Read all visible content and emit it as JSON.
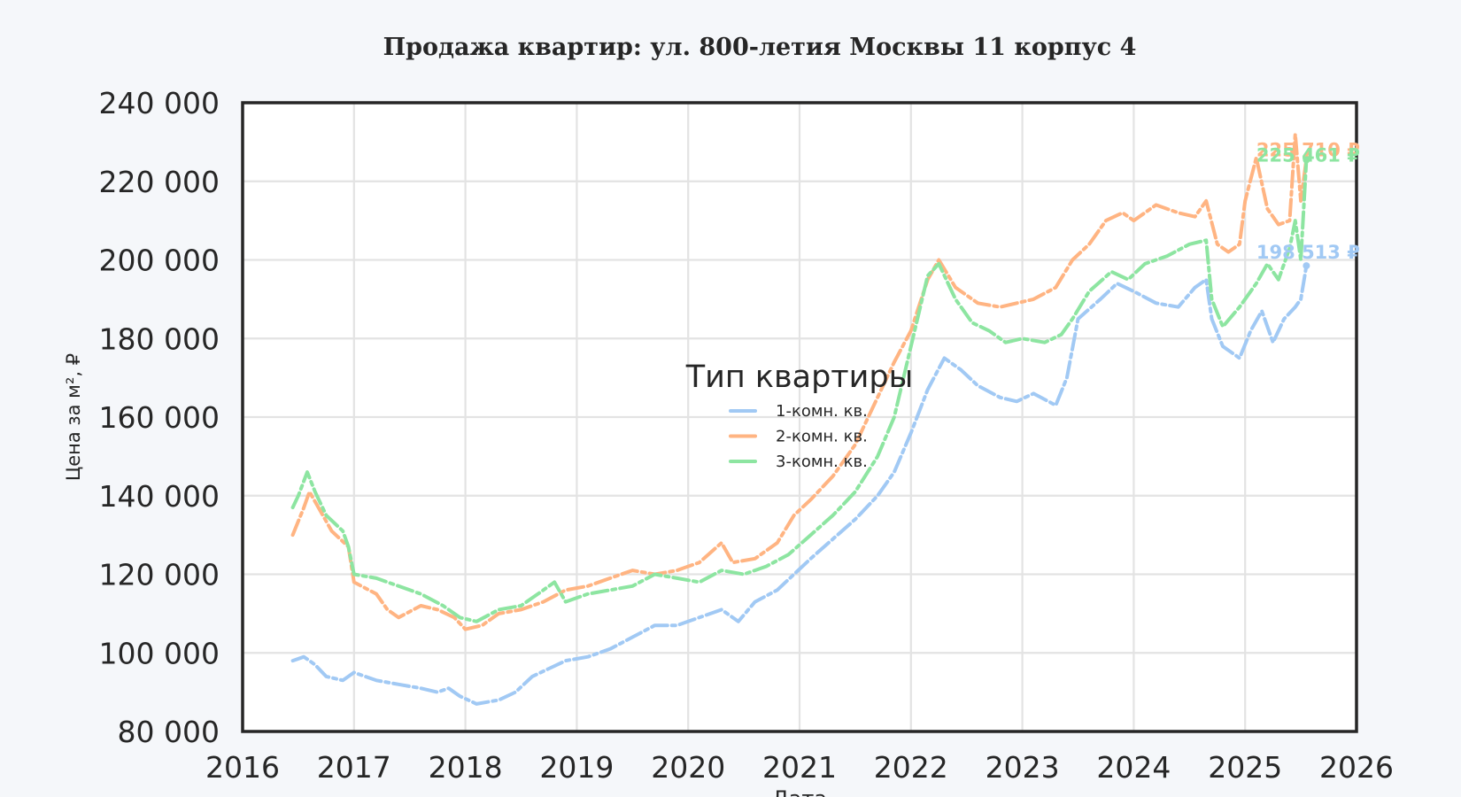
{
  "chart_data": {
    "type": "line",
    "title": "Продажа квартир: ул. 800-летия Москвы 11 корпус 4",
    "xlabel": "Дата",
    "ylabel": "Цена за м², ₽",
    "xlim": [
      2016,
      2026
    ],
    "ylim": [
      80000,
      240000
    ],
    "x_ticks": [
      "2016",
      "2017",
      "2018",
      "2019",
      "2020",
      "2021",
      "2022",
      "2023",
      "2024",
      "2025",
      "2026"
    ],
    "y_ticks": [
      "80 000",
      "100 000",
      "120 000",
      "140 000",
      "160 000",
      "180 000",
      "200 000",
      "220 000",
      "240 000"
    ],
    "grid": true,
    "legend": {
      "title": "Тип квартиры",
      "placement": "center"
    },
    "series": [
      {
        "name": "1-комн. кв.",
        "color": "#a1c9f4",
        "end_label": "198 513 ₽",
        "points": [
          [
            2016.45,
            98000
          ],
          [
            2016.55,
            99000
          ],
          [
            2016.65,
            97000
          ],
          [
            2016.75,
            94000
          ],
          [
            2016.9,
            93000
          ],
          [
            2017.0,
            95000
          ],
          [
            2017.2,
            93000
          ],
          [
            2017.4,
            92000
          ],
          [
            2017.6,
            91000
          ],
          [
            2017.75,
            90000
          ],
          [
            2017.85,
            91000
          ],
          [
            2017.95,
            89000
          ],
          [
            2018.1,
            87000
          ],
          [
            2018.3,
            88000
          ],
          [
            2018.45,
            90000
          ],
          [
            2018.6,
            94000
          ],
          [
            2018.75,
            96000
          ],
          [
            2018.9,
            98000
          ],
          [
            2019.1,
            99000
          ],
          [
            2019.3,
            101000
          ],
          [
            2019.5,
            104000
          ],
          [
            2019.7,
            107000
          ],
          [
            2019.9,
            107000
          ],
          [
            2020.1,
            109000
          ],
          [
            2020.3,
            111000
          ],
          [
            2020.45,
            108000
          ],
          [
            2020.6,
            113000
          ],
          [
            2020.8,
            116000
          ],
          [
            2020.95,
            120000
          ],
          [
            2021.1,
            124000
          ],
          [
            2021.3,
            129000
          ],
          [
            2021.5,
            134000
          ],
          [
            2021.7,
            140000
          ],
          [
            2021.85,
            146000
          ],
          [
            2022.0,
            156000
          ],
          [
            2022.15,
            167000
          ],
          [
            2022.3,
            175000
          ],
          [
            2022.45,
            172000
          ],
          [
            2022.6,
            168000
          ],
          [
            2022.8,
            165000
          ],
          [
            2022.95,
            164000
          ],
          [
            2023.1,
            166000
          ],
          [
            2023.3,
            163000
          ],
          [
            2023.4,
            170000
          ],
          [
            2023.5,
            185000
          ],
          [
            2023.7,
            190000
          ],
          [
            2023.85,
            194000
          ],
          [
            2024.0,
            192000
          ],
          [
            2024.2,
            189000
          ],
          [
            2024.4,
            188000
          ],
          [
            2024.55,
            193000
          ],
          [
            2024.65,
            195000
          ],
          [
            2024.7,
            185000
          ],
          [
            2024.8,
            178000
          ],
          [
            2024.95,
            175000
          ],
          [
            2025.05,
            182000
          ],
          [
            2025.15,
            187000
          ],
          [
            2025.25,
            179000
          ],
          [
            2025.35,
            185000
          ],
          [
            2025.45,
            188000
          ],
          [
            2025.5,
            190000
          ],
          [
            2025.55,
            198513
          ]
        ]
      },
      {
        "name": "2-комн. кв.",
        "color": "#ffb482",
        "end_label": "225 710 ₽",
        "points": [
          [
            2016.45,
            130000
          ],
          [
            2016.55,
            137000
          ],
          [
            2016.6,
            141000
          ],
          [
            2016.7,
            136000
          ],
          [
            2016.8,
            131000
          ],
          [
            2016.95,
            127000
          ],
          [
            2017.0,
            118000
          ],
          [
            2017.2,
            115000
          ],
          [
            2017.3,
            111000
          ],
          [
            2017.4,
            109000
          ],
          [
            2017.6,
            112000
          ],
          [
            2017.75,
            111000
          ],
          [
            2017.9,
            109000
          ],
          [
            2018.0,
            106000
          ],
          [
            2018.15,
            107000
          ],
          [
            2018.3,
            110000
          ],
          [
            2018.5,
            111000
          ],
          [
            2018.7,
            113000
          ],
          [
            2018.9,
            116000
          ],
          [
            2019.1,
            117000
          ],
          [
            2019.3,
            119000
          ],
          [
            2019.5,
            121000
          ],
          [
            2019.7,
            120000
          ],
          [
            2019.9,
            121000
          ],
          [
            2020.1,
            123000
          ],
          [
            2020.3,
            128000
          ],
          [
            2020.4,
            123000
          ],
          [
            2020.6,
            124000
          ],
          [
            2020.8,
            128000
          ],
          [
            2020.95,
            135000
          ],
          [
            2021.1,
            139000
          ],
          [
            2021.3,
            145000
          ],
          [
            2021.5,
            153000
          ],
          [
            2021.7,
            165000
          ],
          [
            2021.85,
            174000
          ],
          [
            2022.0,
            182000
          ],
          [
            2022.15,
            195000
          ],
          [
            2022.25,
            200000
          ],
          [
            2022.4,
            193000
          ],
          [
            2022.6,
            189000
          ],
          [
            2022.8,
            188000
          ],
          [
            2022.95,
            189000
          ],
          [
            2023.1,
            190000
          ],
          [
            2023.3,
            193000
          ],
          [
            2023.45,
            200000
          ],
          [
            2023.6,
            204000
          ],
          [
            2023.75,
            210000
          ],
          [
            2023.9,
            212000
          ],
          [
            2024.0,
            210000
          ],
          [
            2024.2,
            214000
          ],
          [
            2024.4,
            212000
          ],
          [
            2024.55,
            211000
          ],
          [
            2024.65,
            215000
          ],
          [
            2024.75,
            204000
          ],
          [
            2024.85,
            202000
          ],
          [
            2024.95,
            204000
          ],
          [
            2025.0,
            215000
          ],
          [
            2025.1,
            226000
          ],
          [
            2025.2,
            213000
          ],
          [
            2025.3,
            209000
          ],
          [
            2025.4,
            210000
          ],
          [
            2025.45,
            232000
          ],
          [
            2025.5,
            215000
          ],
          [
            2025.55,
            225710
          ]
        ]
      },
      {
        "name": "3-комн. кв.",
        "color": "#8de5a1",
        "end_label": "225 461 ₽",
        "points": [
          [
            2016.45,
            137000
          ],
          [
            2016.5,
            140000
          ],
          [
            2016.58,
            146000
          ],
          [
            2016.65,
            141000
          ],
          [
            2016.75,
            135000
          ],
          [
            2016.9,
            131000
          ],
          [
            2016.95,
            127000
          ],
          [
            2017.0,
            120000
          ],
          [
            2017.2,
            119000
          ],
          [
            2017.4,
            117000
          ],
          [
            2017.6,
            115000
          ],
          [
            2017.8,
            112000
          ],
          [
            2017.95,
            109000
          ],
          [
            2018.1,
            108000
          ],
          [
            2018.3,
            111000
          ],
          [
            2018.5,
            112000
          ],
          [
            2018.7,
            116000
          ],
          [
            2018.8,
            118000
          ],
          [
            2018.9,
            113000
          ],
          [
            2019.1,
            115000
          ],
          [
            2019.3,
            116000
          ],
          [
            2019.5,
            117000
          ],
          [
            2019.7,
            120000
          ],
          [
            2019.9,
            119000
          ],
          [
            2020.1,
            118000
          ],
          [
            2020.3,
            121000
          ],
          [
            2020.5,
            120000
          ],
          [
            2020.7,
            122000
          ],
          [
            2020.9,
            125000
          ],
          [
            2021.1,
            130000
          ],
          [
            2021.3,
            135000
          ],
          [
            2021.5,
            141000
          ],
          [
            2021.7,
            150000
          ],
          [
            2021.85,
            160000
          ],
          [
            2022.0,
            178000
          ],
          [
            2022.15,
            196000
          ],
          [
            2022.25,
            199000
          ],
          [
            2022.4,
            190000
          ],
          [
            2022.55,
            184000
          ],
          [
            2022.7,
            182000
          ],
          [
            2022.85,
            179000
          ],
          [
            2023.0,
            180000
          ],
          [
            2023.2,
            179000
          ],
          [
            2023.35,
            181000
          ],
          [
            2023.45,
            185000
          ],
          [
            2023.6,
            192000
          ],
          [
            2023.8,
            197000
          ],
          [
            2023.95,
            195000
          ],
          [
            2024.1,
            199000
          ],
          [
            2024.3,
            201000
          ],
          [
            2024.5,
            204000
          ],
          [
            2024.65,
            205000
          ],
          [
            2024.7,
            190000
          ],
          [
            2024.8,
            183000
          ],
          [
            2024.95,
            188000
          ],
          [
            2025.1,
            194000
          ],
          [
            2025.2,
            199000
          ],
          [
            2025.3,
            195000
          ],
          [
            2025.4,
            203000
          ],
          [
            2025.45,
            210000
          ],
          [
            2025.5,
            200000
          ],
          [
            2025.55,
            225461
          ]
        ]
      }
    ]
  }
}
